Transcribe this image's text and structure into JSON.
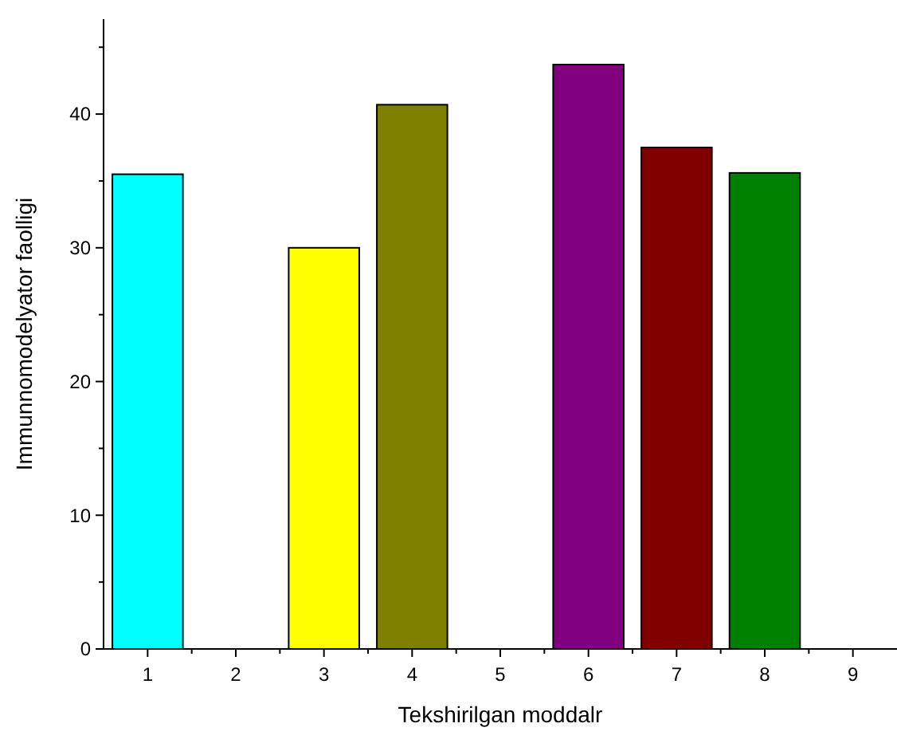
{
  "chart_data": {
    "type": "bar",
    "xlabel": "Tekshirilgan moddalr",
    "ylabel": "Immunnomodelyator faolligi",
    "categories": [
      "1",
      "2",
      "3",
      "4",
      "5",
      "6",
      "7",
      "8",
      "9"
    ],
    "values": [
      35.5,
      null,
      30,
      40.7,
      null,
      43.7,
      37.5,
      35.6,
      null
    ],
    "colors": [
      "#00ffff",
      null,
      "#ffff00",
      "#808000",
      null,
      "#800080",
      "#800000",
      "#008000",
      null
    ],
    "ylim": [
      0,
      47.1
    ],
    "yticks": [
      0,
      {
        "value": 5,
        "label": null
      },
      10,
      {
        "value": 15,
        "label": null
      },
      20,
      {
        "value": 25,
        "label": null
      },
      30,
      {
        "value": 35,
        "label": null
      },
      40,
      {
        "value": 45,
        "label": null
      }
    ],
    "grid": false
  }
}
